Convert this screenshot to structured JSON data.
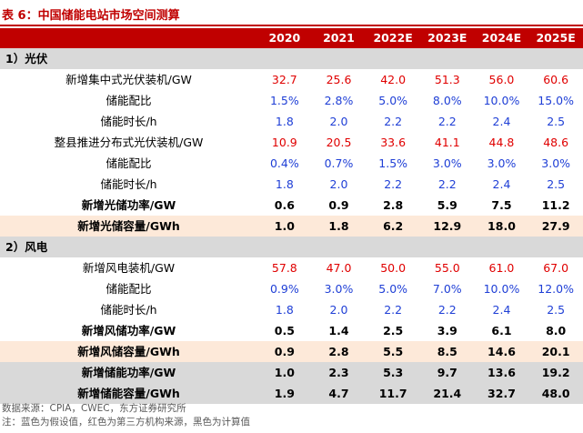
{
  "title": "表 6：中国储能电站市场空间测算",
  "header": [
    "",
    "2020",
    "2021",
    "2022E",
    "2023E",
    "2024E",
    "2025E"
  ],
  "rows": [
    {
      "type": "section",
      "label": "1）光伏"
    },
    {
      "type": "data",
      "label": "新增集中式光伏装机/GW",
      "values": [
        "32.7",
        "25.6",
        "42.0",
        "51.3",
        "56.0",
        "60.6"
      ],
      "colors": [
        "red",
        "red",
        "red",
        "red",
        "red",
        "red"
      ]
    },
    {
      "type": "data",
      "label": "储能配比",
      "values": [
        "1.5%",
        "2.8%",
        "5.0%",
        "8.0%",
        "10.0%",
        "15.0%"
      ],
      "colors": [
        "blue",
        "blue",
        "blue",
        "blue",
        "blue",
        "blue"
      ]
    },
    {
      "type": "data",
      "label": "储能时长/h",
      "values": [
        "1.8",
        "2.0",
        "2.2",
        "2.2",
        "2.4",
        "2.5"
      ],
      "colors": [
        "blue",
        "blue",
        "blue",
        "blue",
        "blue",
        "blue"
      ]
    },
    {
      "type": "data",
      "label": "整县推进分布式光伏装机/GW",
      "values": [
        "10.9",
        "20.5",
        "33.6",
        "41.1",
        "44.8",
        "48.6"
      ],
      "colors": [
        "red",
        "red",
        "red",
        "red",
        "red",
        "red"
      ]
    },
    {
      "type": "data",
      "label": "储能配比",
      "values": [
        "0.4%",
        "0.7%",
        "1.5%",
        "3.0%",
        "3.0%",
        "3.0%"
      ],
      "colors": [
        "blue",
        "blue",
        "blue",
        "blue",
        "blue",
        "blue"
      ]
    },
    {
      "type": "data",
      "label": "储能时长/h",
      "values": [
        "1.8",
        "2.0",
        "2.2",
        "2.2",
        "2.4",
        "2.5"
      ],
      "colors": [
        "blue",
        "blue",
        "blue",
        "blue",
        "blue",
        "blue"
      ]
    },
    {
      "type": "bold",
      "label": "新增光储功率/GW",
      "values": [
        "0.6",
        "0.9",
        "2.8",
        "5.9",
        "7.5",
        "11.2"
      ],
      "colors": [
        "blk",
        "blk",
        "blk",
        "blk",
        "blk",
        "blk"
      ]
    },
    {
      "type": "bold-pink",
      "label": "新增光储容量/GWh",
      "values": [
        "1.0",
        "1.8",
        "6.2",
        "12.9",
        "18.0",
        "27.9"
      ],
      "colors": [
        "blk",
        "blk",
        "blk",
        "blk",
        "blk",
        "blk"
      ]
    },
    {
      "type": "section",
      "label": "2）风电"
    },
    {
      "type": "data",
      "label": "新增风电装机/GW",
      "values": [
        "57.8",
        "47.0",
        "50.0",
        "55.0",
        "61.0",
        "67.0"
      ],
      "colors": [
        "red",
        "red",
        "red",
        "red",
        "red",
        "red"
      ]
    },
    {
      "type": "data",
      "label": "储能配比",
      "values": [
        "0.9%",
        "3.0%",
        "5.0%",
        "7.0%",
        "10.0%",
        "12.0%"
      ],
      "colors": [
        "blue",
        "blue",
        "blue",
        "blue",
        "blue",
        "blue"
      ]
    },
    {
      "type": "data",
      "label": "储能时长/h",
      "values": [
        "1.8",
        "2.0",
        "2.2",
        "2.2",
        "2.4",
        "2.5"
      ],
      "colors": [
        "blue",
        "blue",
        "blue",
        "blue",
        "blue",
        "blue"
      ]
    },
    {
      "type": "bold",
      "label": "新增风储功率/GW",
      "values": [
        "0.5",
        "1.4",
        "2.5",
        "3.9",
        "6.1",
        "8.0"
      ],
      "colors": [
        "blk",
        "blk",
        "blk",
        "blk",
        "blk",
        "blk"
      ]
    },
    {
      "type": "bold-pink",
      "label": "新增风储容量/GWh",
      "values": [
        "0.9",
        "2.8",
        "5.5",
        "8.5",
        "14.6",
        "20.1"
      ],
      "colors": [
        "blk",
        "blk",
        "blk",
        "blk",
        "blk",
        "blk"
      ]
    },
    {
      "type": "bold-gray",
      "label": "新增储能功率/GW",
      "values": [
        "1.0",
        "2.3",
        "5.3",
        "9.7",
        "13.6",
        "19.2"
      ],
      "colors": [
        "red",
        "red",
        "blk",
        "blk",
        "blk",
        "blk"
      ]
    },
    {
      "type": "bold-gray",
      "label": "新增储能容量/GWh",
      "values": [
        "1.9",
        "4.7",
        "11.7",
        "21.4",
        "32.7",
        "48.0"
      ],
      "colors": [
        "red",
        "red",
        "blk",
        "blk",
        "blk",
        "blk"
      ]
    }
  ],
  "notes": {
    "source": "数据来源：CPIA，CWEC，东方证券研究所",
    "note": "注：蓝色为假设值，红色为第三方机构来源，黑色为计算值"
  }
}
